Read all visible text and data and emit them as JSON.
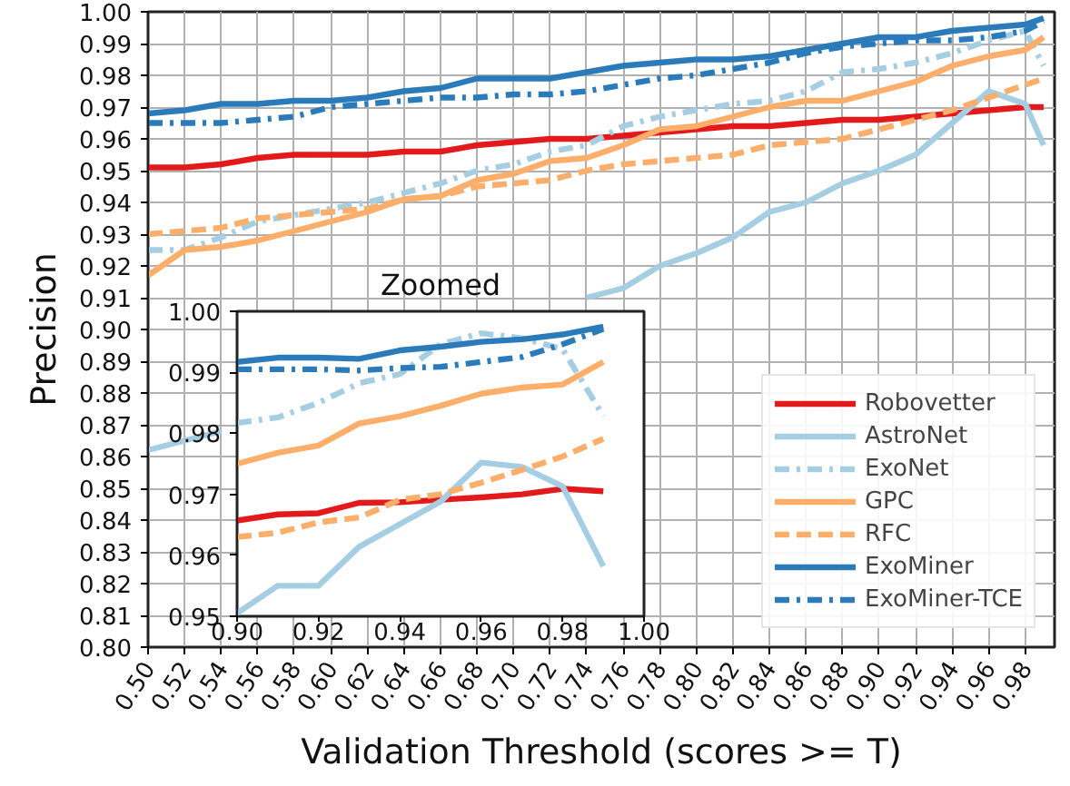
{
  "chart_data": [
    {
      "type": "line",
      "xlabel": "Validation Threshold (scores >= T)",
      "ylabel": "Precision",
      "x": [
        0.5,
        0.52,
        0.54,
        0.56,
        0.58,
        0.6,
        0.62,
        0.64,
        0.66,
        0.68,
        0.7,
        0.72,
        0.74,
        0.76,
        0.78,
        0.8,
        0.82,
        0.84,
        0.86,
        0.88,
        0.9,
        0.92,
        0.94,
        0.96,
        0.98,
        0.99
      ],
      "series": [
        {
          "name": "Robovetter",
          "color": "#e31a1c",
          "line_style": "solid",
          "values": [
            0.951,
            0.951,
            0.952,
            0.954,
            0.955,
            0.955,
            0.955,
            0.956,
            0.956,
            0.958,
            0.959,
            0.96,
            0.96,
            0.961,
            0.962,
            0.963,
            0.964,
            0.964,
            0.965,
            0.966,
            0.966,
            0.967,
            0.968,
            0.969,
            0.97,
            0.97
          ]
        },
        {
          "name": "AstroNet",
          "color": "#a6cee3",
          "line_style": "solid",
          "values": [
            0.862,
            0.865,
            0.868,
            null,
            null,
            null,
            null,
            null,
            null,
            null,
            null,
            null,
            0.91,
            0.913,
            0.92,
            0.924,
            0.929,
            0.937,
            0.94,
            0.946,
            0.95,
            0.955,
            0.965,
            0.975,
            0.971,
            0.958
          ]
        },
        {
          "name": "ExoNet",
          "color": "#a6cee3",
          "line_style": "dashdot",
          "values": [
            0.925,
            0.925,
            0.929,
            0.934,
            0.936,
            0.938,
            0.94,
            0.943,
            0.946,
            0.95,
            0.952,
            0.956,
            0.958,
            0.964,
            0.967,
            0.969,
            0.971,
            0.972,
            0.975,
            0.981,
            0.982,
            0.984,
            0.987,
            0.991,
            0.994,
            0.983
          ]
        },
        {
          "name": "GPC",
          "color": "#fdae6b",
          "line_style": "solid",
          "values": [
            0.917,
            0.925,
            0.926,
            0.928,
            0.931,
            0.934,
            0.937,
            0.941,
            0.942,
            0.947,
            0.949,
            0.953,
            0.954,
            0.958,
            0.963,
            0.964,
            0.967,
            0.97,
            0.972,
            0.972,
            0.975,
            0.978,
            0.983,
            0.986,
            0.988,
            0.992
          ]
        },
        {
          "name": "RFC",
          "color": "#fdae6b",
          "line_style": "dashed",
          "values": [
            0.93,
            0.931,
            0.932,
            0.935,
            0.936,
            0.937,
            0.938,
            0.941,
            0.942,
            0.945,
            0.946,
            0.947,
            0.95,
            0.952,
            0.953,
            0.954,
            0.955,
            0.958,
            0.959,
            0.96,
            0.963,
            0.966,
            0.969,
            0.973,
            0.977,
            0.979
          ]
        },
        {
          "name": "ExoMiner",
          "color": "#2b7bba",
          "line_style": "solid",
          "values": [
            0.968,
            0.969,
            0.971,
            0.971,
            0.972,
            0.972,
            0.973,
            0.975,
            0.976,
            0.979,
            0.979,
            0.979,
            0.981,
            0.983,
            0.984,
            0.985,
            0.985,
            0.986,
            0.988,
            0.99,
            0.992,
            0.992,
            0.994,
            0.995,
            0.996,
            0.998
          ]
        },
        {
          "name": "ExoMiner-TCE",
          "color": "#2b7bba",
          "line_style": "dashdot",
          "values": [
            0.965,
            0.965,
            0.965,
            0.966,
            0.967,
            0.97,
            0.971,
            0.972,
            0.973,
            0.973,
            0.974,
            0.974,
            0.975,
            0.977,
            0.979,
            0.98,
            0.982,
            0.984,
            0.987,
            0.989,
            0.99,
            0.991,
            0.991,
            0.992,
            0.994,
            0.997
          ]
        }
      ],
      "xlim": [
        0.5,
        0.996
      ],
      "ylim": [
        0.8,
        1.0
      ],
      "xticks": [
        {
          "value": 0.5,
          "label": "0.50"
        },
        {
          "value": 0.52,
          "label": "0.52"
        },
        {
          "value": 0.54,
          "label": "0.54"
        },
        {
          "value": 0.56,
          "label": "0.56"
        },
        {
          "value": 0.58,
          "label": "0.58"
        },
        {
          "value": 0.6,
          "label": "0.60"
        },
        {
          "value": 0.62,
          "label": "0.62"
        },
        {
          "value": 0.64,
          "label": "0.64"
        },
        {
          "value": 0.66,
          "label": "0.66"
        },
        {
          "value": 0.68,
          "label": "0.68"
        },
        {
          "value": 0.7,
          "label": "0.70"
        },
        {
          "value": 0.72,
          "label": "0.72"
        },
        {
          "value": 0.74,
          "label": "0.74"
        },
        {
          "value": 0.76,
          "label": "0.76"
        },
        {
          "value": 0.78,
          "label": "0.78"
        },
        {
          "value": 0.8,
          "label": "0.80"
        },
        {
          "value": 0.82,
          "label": "0.82"
        },
        {
          "value": 0.84,
          "label": "0.84"
        },
        {
          "value": 0.86,
          "label": "0.86"
        },
        {
          "value": 0.88,
          "label": "0.88"
        },
        {
          "value": 0.9,
          "label": "0.90"
        },
        {
          "value": 0.92,
          "label": "0.92"
        },
        {
          "value": 0.94,
          "label": "0.94"
        },
        {
          "value": 0.96,
          "label": "0.96"
        },
        {
          "value": 0.98,
          "label": "0.98"
        }
      ],
      "yticks": [
        {
          "value": 0.8,
          "label": "0.80"
        },
        0.81,
        0.82,
        0.83,
        0.84,
        0.85,
        0.86,
        0.87,
        0.88,
        0.89,
        {
          "value": 0.9,
          "label": "0.90"
        },
        0.91,
        0.92,
        0.93,
        0.94,
        0.95,
        0.96,
        0.97,
        0.98,
        0.99,
        {
          "value": 1.0,
          "label": "1.00"
        }
      ],
      "grid": true,
      "legend": "bottom right"
    },
    {
      "type": "line",
      "title": "Zoomed",
      "x": [
        0.9,
        0.91,
        0.92,
        0.93,
        0.94,
        0.95,
        0.96,
        0.97,
        0.98,
        0.99
      ],
      "series": [
        {
          "color": "#e31a1c",
          "line_style": "solid",
          "values": [
            0.9657,
            0.9667,
            0.9669,
            0.9686,
            0.9687,
            0.9691,
            0.9695,
            0.97,
            0.9709,
            0.9705
          ]
        },
        {
          "color": "#a6cee3",
          "line_style": "solid",
          "values": [
            0.9505,
            0.955,
            0.955,
            0.9614,
            0.9651,
            0.9688,
            0.9752,
            0.9745,
            0.9713,
            0.9582
          ]
        },
        {
          "color": "#a6cee3",
          "line_style": "dashdot",
          "values": [
            0.9817,
            0.9826,
            0.985,
            0.9882,
            0.9897,
            0.9946,
            0.9964,
            0.9956,
            0.9938,
            0.9828
          ]
        },
        {
          "color": "#fdae6b",
          "line_style": "solid",
          "values": [
            0.975,
            0.9768,
            0.978,
            0.9816,
            0.9828,
            0.9845,
            0.9865,
            0.9875,
            0.988,
            0.9917
          ]
        },
        {
          "color": "#fdae6b",
          "line_style": "dashed",
          "values": [
            0.963,
            0.9637,
            0.9654,
            0.9662,
            0.9691,
            0.97,
            0.9719,
            0.974,
            0.9762,
            0.9791
          ]
        },
        {
          "color": "#2b7bba",
          "line_style": "solid",
          "values": [
            0.9917,
            0.9924,
            0.9924,
            0.9922,
            0.9936,
            0.9942,
            0.995,
            0.9954,
            0.9962,
            0.9975
          ]
        },
        {
          "color": "#2b7bba",
          "line_style": "dashdot",
          "values": [
            0.9905,
            0.9905,
            0.9905,
            0.9903,
            0.9907,
            0.9909,
            0.9917,
            0.9925,
            0.9946,
            0.9971
          ]
        }
      ],
      "xlim": [
        0.9,
        1.0
      ],
      "ylim": [
        0.95,
        1.0
      ],
      "xticks": [
        {
          "value": 0.9,
          "label": "0.90"
        },
        0.92,
        0.94,
        0.96,
        0.98,
        {
          "value": 1.0,
          "label": "1.00"
        }
      ],
      "yticks": [
        0.95,
        0.96,
        0.97,
        0.98,
        0.99,
        {
          "value": 1.0,
          "label": "1.00"
        }
      ]
    }
  ]
}
